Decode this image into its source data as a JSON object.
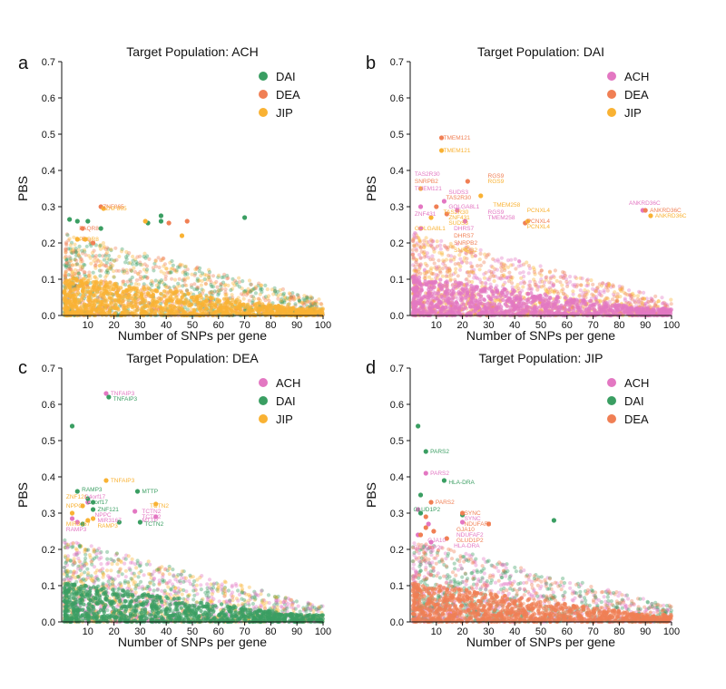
{
  "chart_data": [
    {
      "panel": "a",
      "type": "scatter",
      "title": "Target Population: ACH",
      "xlabel": "Number of SNPs per gene",
      "ylabel": "PBS",
      "xlim": [
        0,
        100
      ],
      "ylim": [
        0,
        0.7
      ],
      "xticks": [
        "10",
        "20",
        "30",
        "40",
        "50",
        "60",
        "70",
        "80",
        "90",
        "100"
      ],
      "yticks": [
        "0.0",
        "0.1",
        "0.2",
        "0.3",
        "0.4",
        "0.5",
        "0.6",
        "0.7"
      ],
      "legend_position": "top-right",
      "series": [
        {
          "name": "DAI",
          "color": "#3a9e62",
          "points": [
            [
              3,
              0.265
            ],
            [
              6,
              0.26
            ],
            [
              10,
              0.26
            ],
            [
              15,
              0.24
            ],
            [
              33,
              0.255
            ],
            [
              38,
              0.275
            ],
            [
              38,
              0.26
            ],
            [
              70,
              0.27
            ]
          ]
        },
        {
          "name": "DEA",
          "color": "#f07f54",
          "points": [
            [
              15,
              0.3
            ],
            [
              8,
              0.24
            ],
            [
              41,
              0.255
            ],
            [
              48,
              0.26
            ],
            [
              12,
              0.2
            ]
          ]
        },
        {
          "name": "JIP",
          "color": "#f9b233",
          "points": [
            [
              16,
              0.295
            ],
            [
              9,
              0.21
            ],
            [
              6,
              0.21
            ],
            [
              32,
              0.26
            ],
            [
              46,
              0.22
            ]
          ]
        }
      ],
      "bulk": {
        "colors": [
          "#3a9e62",
          "#f07f54",
          "#f9b233"
        ]
      },
      "annotations": [
        {
          "text": "ZNF865",
          "x": 15,
          "y": 0.3,
          "color": "#f07f54"
        },
        {
          "text": "ZNF865",
          "x": 16,
          "y": 0.295,
          "color": "#f9b233"
        },
        {
          "text": "PAQR8",
          "x": 6,
          "y": 0.24,
          "color": "#f07f54"
        },
        {
          "text": "PAQR8",
          "x": 6,
          "y": 0.21,
          "color": "#f9b233"
        }
      ]
    },
    {
      "panel": "b",
      "type": "scatter",
      "title": "Target Population: DAI",
      "xlabel": "Number of SNPs per gene",
      "ylabel": "PBS",
      "xlim": [
        0,
        100
      ],
      "ylim": [
        0,
        0.7
      ],
      "xticks": [
        "10",
        "20",
        "30",
        "40",
        "50",
        "60",
        "70",
        "80",
        "90",
        "100"
      ],
      "yticks": [
        "0.0",
        "0.1",
        "0.2",
        "0.3",
        "0.4",
        "0.5",
        "0.6",
        "0.7"
      ],
      "legend_position": "top-right",
      "series": [
        {
          "name": "ACH",
          "color": "#e377c2",
          "points": [
            [
              4,
              0.3
            ],
            [
              13,
              0.315
            ],
            [
              21,
              0.26
            ],
            [
              18,
              0.29
            ],
            [
              89,
              0.29
            ],
            [
              4,
              0.24
            ]
          ]
        },
        {
          "name": "DEA",
          "color": "#f07f54",
          "points": [
            [
              12,
              0.49
            ],
            [
              22,
              0.37
            ],
            [
              44,
              0.255
            ],
            [
              90,
              0.29
            ],
            [
              10,
              0.3
            ],
            [
              14,
              0.28
            ]
          ]
        },
        {
          "name": "JIP",
          "color": "#f9b233",
          "points": [
            [
              12,
              0.455
            ],
            [
              27,
              0.33
            ],
            [
              45,
              0.26
            ],
            [
              92,
              0.275
            ],
            [
              4,
              0.35
            ],
            [
              8,
              0.27
            ]
          ]
        }
      ],
      "bulk": {
        "colors": [
          "#f07f54",
          "#f9b233",
          "#e377c2"
        ]
      },
      "annotations": [
        {
          "text": "TMEM121",
          "x": 12,
          "y": 0.49,
          "color": "#f07f54"
        },
        {
          "text": "TMEM121",
          "x": 12,
          "y": 0.455,
          "color": "#f9b233"
        },
        {
          "text": "TAS2R30",
          "x": 1,
          "y": 0.39,
          "color": "#e377c2"
        },
        {
          "text": "SNRPB2",
          "x": 1,
          "y": 0.37,
          "color": "#f07f54"
        },
        {
          "text": "TMEM121",
          "x": 1,
          "y": 0.35,
          "color": "#e377c2"
        },
        {
          "text": "SUDS3",
          "x": 14,
          "y": 0.34,
          "color": "#e377c2"
        },
        {
          "text": "TAS2R30",
          "x": 13,
          "y": 0.325,
          "color": "#f07f54"
        },
        {
          "text": "RGS9",
          "x": 29,
          "y": 0.385,
          "color": "#f07f54"
        },
        {
          "text": "RGS9",
          "x": 29,
          "y": 0.37,
          "color": "#f9b233"
        },
        {
          "text": "GOLGA8L1",
          "x": 14,
          "y": 0.3,
          "color": "#e377c2"
        },
        {
          "text": "TMEM258",
          "x": 31,
          "y": 0.305,
          "color": "#f9b233"
        },
        {
          "text": "ZNF431",
          "x": 1,
          "y": 0.28,
          "color": "#e377c2"
        },
        {
          "text": "TAS2R30",
          "x": 12,
          "y": 0.285,
          "color": "#f9b233"
        },
        {
          "text": "RGS9",
          "x": 29,
          "y": 0.285,
          "color": "#e377c2"
        },
        {
          "text": "ZNF431",
          "x": 14,
          "y": 0.27,
          "color": "#f9b233"
        },
        {
          "text": "TMEM258",
          "x": 29,
          "y": 0.27,
          "color": "#e377c2"
        },
        {
          "text": "PCNXL4",
          "x": 44,
          "y": 0.29,
          "color": "#f9b233"
        },
        {
          "text": "PCNXL4",
          "x": 44,
          "y": 0.26,
          "color": "#f07f54"
        },
        {
          "text": "PCNXL4",
          "x": 44,
          "y": 0.245,
          "color": "#f9b233"
        },
        {
          "text": "SUDS3",
          "x": 14,
          "y": 0.255,
          "color": "#f9b233"
        },
        {
          "text": "GOLGA8L1",
          "x": 1,
          "y": 0.24,
          "color": "#f9b233"
        },
        {
          "text": "DHRS7",
          "x": 16,
          "y": 0.24,
          "color": "#e377c2"
        },
        {
          "text": "DHRS7",
          "x": 16,
          "y": 0.22,
          "color": "#f07f54"
        },
        {
          "text": "SNRPB2",
          "x": 16,
          "y": 0.2,
          "color": "#f07f54"
        },
        {
          "text": "SNRPB2",
          "x": 16,
          "y": 0.18,
          "color": "#f9b233"
        },
        {
          "text": "ANKRD36C",
          "x": 83,
          "y": 0.31,
          "color": "#e377c2"
        },
        {
          "text": "ANKRD36C",
          "x": 91,
          "y": 0.29,
          "color": "#f07f54"
        },
        {
          "text": "ANKRD36C",
          "x": 93,
          "y": 0.275,
          "color": "#f9b233"
        }
      ]
    },
    {
      "panel": "c",
      "type": "scatter",
      "title": "Target Population: DEA",
      "xlabel": "Number of SNPs per gene",
      "ylabel": "PBS",
      "xlim": [
        0,
        100
      ],
      "ylim": [
        0,
        0.7
      ],
      "xticks": [
        "10",
        "20",
        "30",
        "40",
        "50",
        "60",
        "70",
        "80",
        "90",
        "100"
      ],
      "yticks": [
        "0.0",
        "0.1",
        "0.2",
        "0.3",
        "0.4",
        "0.5",
        "0.6",
        "0.7"
      ],
      "legend_position": "top-right",
      "series": [
        {
          "name": "ACH",
          "color": "#e377c2",
          "points": [
            [
              17,
              0.63
            ],
            [
              4,
              0.285
            ],
            [
              10,
              0.33
            ],
            [
              28,
              0.305
            ],
            [
              36,
              0.29
            ],
            [
              6,
              0.275
            ]
          ]
        },
        {
          "name": "DAI",
          "color": "#3a9e62",
          "points": [
            [
              4,
              0.54
            ],
            [
              18,
              0.62
            ],
            [
              6,
              0.36
            ],
            [
              10,
              0.34
            ],
            [
              12,
              0.33
            ],
            [
              29,
              0.36
            ],
            [
              12,
              0.31
            ],
            [
              22,
              0.275
            ],
            [
              30,
              0.275
            ],
            [
              8,
              0.27
            ]
          ]
        },
        {
          "name": "JIP",
          "color": "#f9b233",
          "points": [
            [
              17,
              0.39
            ],
            [
              8,
              0.32
            ],
            [
              36,
              0.325
            ],
            [
              4,
              0.3
            ],
            [
              10,
              0.28
            ],
            [
              12,
              0.285
            ]
          ]
        }
      ],
      "bulk": {
        "colors": [
          "#e377c2",
          "#f9b233",
          "#3a9e62"
        ]
      },
      "annotations": [
        {
          "text": "TNFAIP3",
          "x": 18,
          "y": 0.63,
          "color": "#e377c2"
        },
        {
          "text": "TNFAIP3",
          "x": 19,
          "y": 0.615,
          "color": "#3a9e62"
        },
        {
          "text": "TNFAIP3",
          "x": 18,
          "y": 0.39,
          "color": "#f9b233"
        },
        {
          "text": "RAMP3",
          "x": 7,
          "y": 0.365,
          "color": "#3a9e62"
        },
        {
          "text": "MTTP",
          "x": 30,
          "y": 0.36,
          "color": "#3a9e62"
        },
        {
          "text": "ZNF121",
          "x": 1,
          "y": 0.345,
          "color": "#f9b233"
        },
        {
          "text": "C4orf17",
          "x": 8,
          "y": 0.345,
          "color": "#e377c2"
        },
        {
          "text": "C4orf17",
          "x": 9,
          "y": 0.33,
          "color": "#3a9e62"
        },
        {
          "text": "NPPC",
          "x": 1,
          "y": 0.32,
          "color": "#f9b233"
        },
        {
          "text": "ZNF121",
          "x": 13,
          "y": 0.31,
          "color": "#3a9e62"
        },
        {
          "text": "TCTN2",
          "x": 33,
          "y": 0.32,
          "color": "#f9b233"
        },
        {
          "text": "TCTN2",
          "x": 30,
          "y": 0.305,
          "color": "#e377c2"
        },
        {
          "text": "NPPC",
          "x": 12,
          "y": 0.295,
          "color": "#e377c2"
        },
        {
          "text": "TCTN2",
          "x": 30,
          "y": 0.29,
          "color": "#e377c2"
        },
        {
          "text": "MIR3167",
          "x": 13,
          "y": 0.28,
          "color": "#e377c2"
        },
        {
          "text": "MTTP",
          "x": 30,
          "y": 0.28,
          "color": "#e377c2"
        },
        {
          "text": "RAMP3",
          "x": 13,
          "y": 0.265,
          "color": "#f9b233"
        },
        {
          "text": "TCTN2",
          "x": 31,
          "y": 0.27,
          "color": "#3a9e62"
        },
        {
          "text": "MIR3167",
          "x": 1,
          "y": 0.27,
          "color": "#f9b233"
        },
        {
          "text": "RAMP3",
          "x": 1,
          "y": 0.255,
          "color": "#e377c2"
        }
      ]
    },
    {
      "panel": "d",
      "type": "scatter",
      "title": "Target Population: JIP",
      "xlabel": "Number of SNPs per gene",
      "ylabel": "PBS",
      "xlim": [
        0,
        100
      ],
      "ylim": [
        0,
        0.7
      ],
      "xticks": [
        "10",
        "20",
        "30",
        "40",
        "50",
        "60",
        "70",
        "80",
        "90",
        "100"
      ],
      "yticks": [
        "0.0",
        "0.1",
        "0.2",
        "0.3",
        "0.4",
        "0.5",
        "0.6",
        "0.7"
      ],
      "legend_position": "top-right",
      "series": [
        {
          "name": "ACH",
          "color": "#e377c2",
          "points": [
            [
              6,
              0.41
            ],
            [
              3,
              0.31
            ],
            [
              7,
              0.27
            ],
            [
              20,
              0.275
            ],
            [
              3,
              0.24
            ],
            [
              8,
              0.22
            ]
          ]
        },
        {
          "name": "DAI",
          "color": "#3a9e62",
          "points": [
            [
              3,
              0.54
            ],
            [
              6,
              0.47
            ],
            [
              13,
              0.39
            ],
            [
              4,
              0.3
            ],
            [
              55,
              0.28
            ],
            [
              4,
              0.35
            ],
            [
              20,
              0.295
            ]
          ]
        },
        {
          "name": "DEA",
          "color": "#f07f54",
          "points": [
            [
              8,
              0.33
            ],
            [
              20,
              0.3
            ],
            [
              30,
              0.27
            ],
            [
              6,
              0.29
            ],
            [
              6,
              0.26
            ],
            [
              9,
              0.25
            ],
            [
              14,
              0.23
            ],
            [
              4,
              0.24
            ]
          ]
        }
      ],
      "bulk": {
        "colors": [
          "#e377c2",
          "#3a9e62",
          "#f07f54"
        ]
      },
      "annotations": [
        {
          "text": "PARS2",
          "x": 7,
          "y": 0.47,
          "color": "#3a9e62"
        },
        {
          "text": "PARS2",
          "x": 7,
          "y": 0.41,
          "color": "#e377c2"
        },
        {
          "text": "HLA-DRA",
          "x": 14,
          "y": 0.385,
          "color": "#3a9e62"
        },
        {
          "text": "PARS2",
          "x": 9,
          "y": 0.33,
          "color": "#f07f54"
        },
        {
          "text": "GLUD1P2",
          "x": 0.5,
          "y": 0.31,
          "color": "#3a9e62"
        },
        {
          "text": "SYNC",
          "x": 20,
          "y": 0.3,
          "color": "#f07f54"
        },
        {
          "text": "SYNC",
          "x": 20,
          "y": 0.285,
          "color": "#e377c2"
        },
        {
          "text": "NDUFAF2",
          "x": 20,
          "y": 0.27,
          "color": "#f07f54"
        },
        {
          "text": "GJA10",
          "x": 17,
          "y": 0.255,
          "color": "#f07f54"
        },
        {
          "text": "NDUFAF2",
          "x": 17,
          "y": 0.24,
          "color": "#e377c2"
        },
        {
          "text": "GLUD1P2",
          "x": 17,
          "y": 0.225,
          "color": "#f07f54"
        },
        {
          "text": "GJA10",
          "x": 6,
          "y": 0.225,
          "color": "#e377c2"
        },
        {
          "text": "HLA-DRA",
          "x": 16,
          "y": 0.21,
          "color": "#e377c2"
        },
        {
          "text": "GLUD1P2",
          "x": 0.5,
          "y": 0.205,
          "color": "#e377c2"
        }
      ]
    }
  ]
}
